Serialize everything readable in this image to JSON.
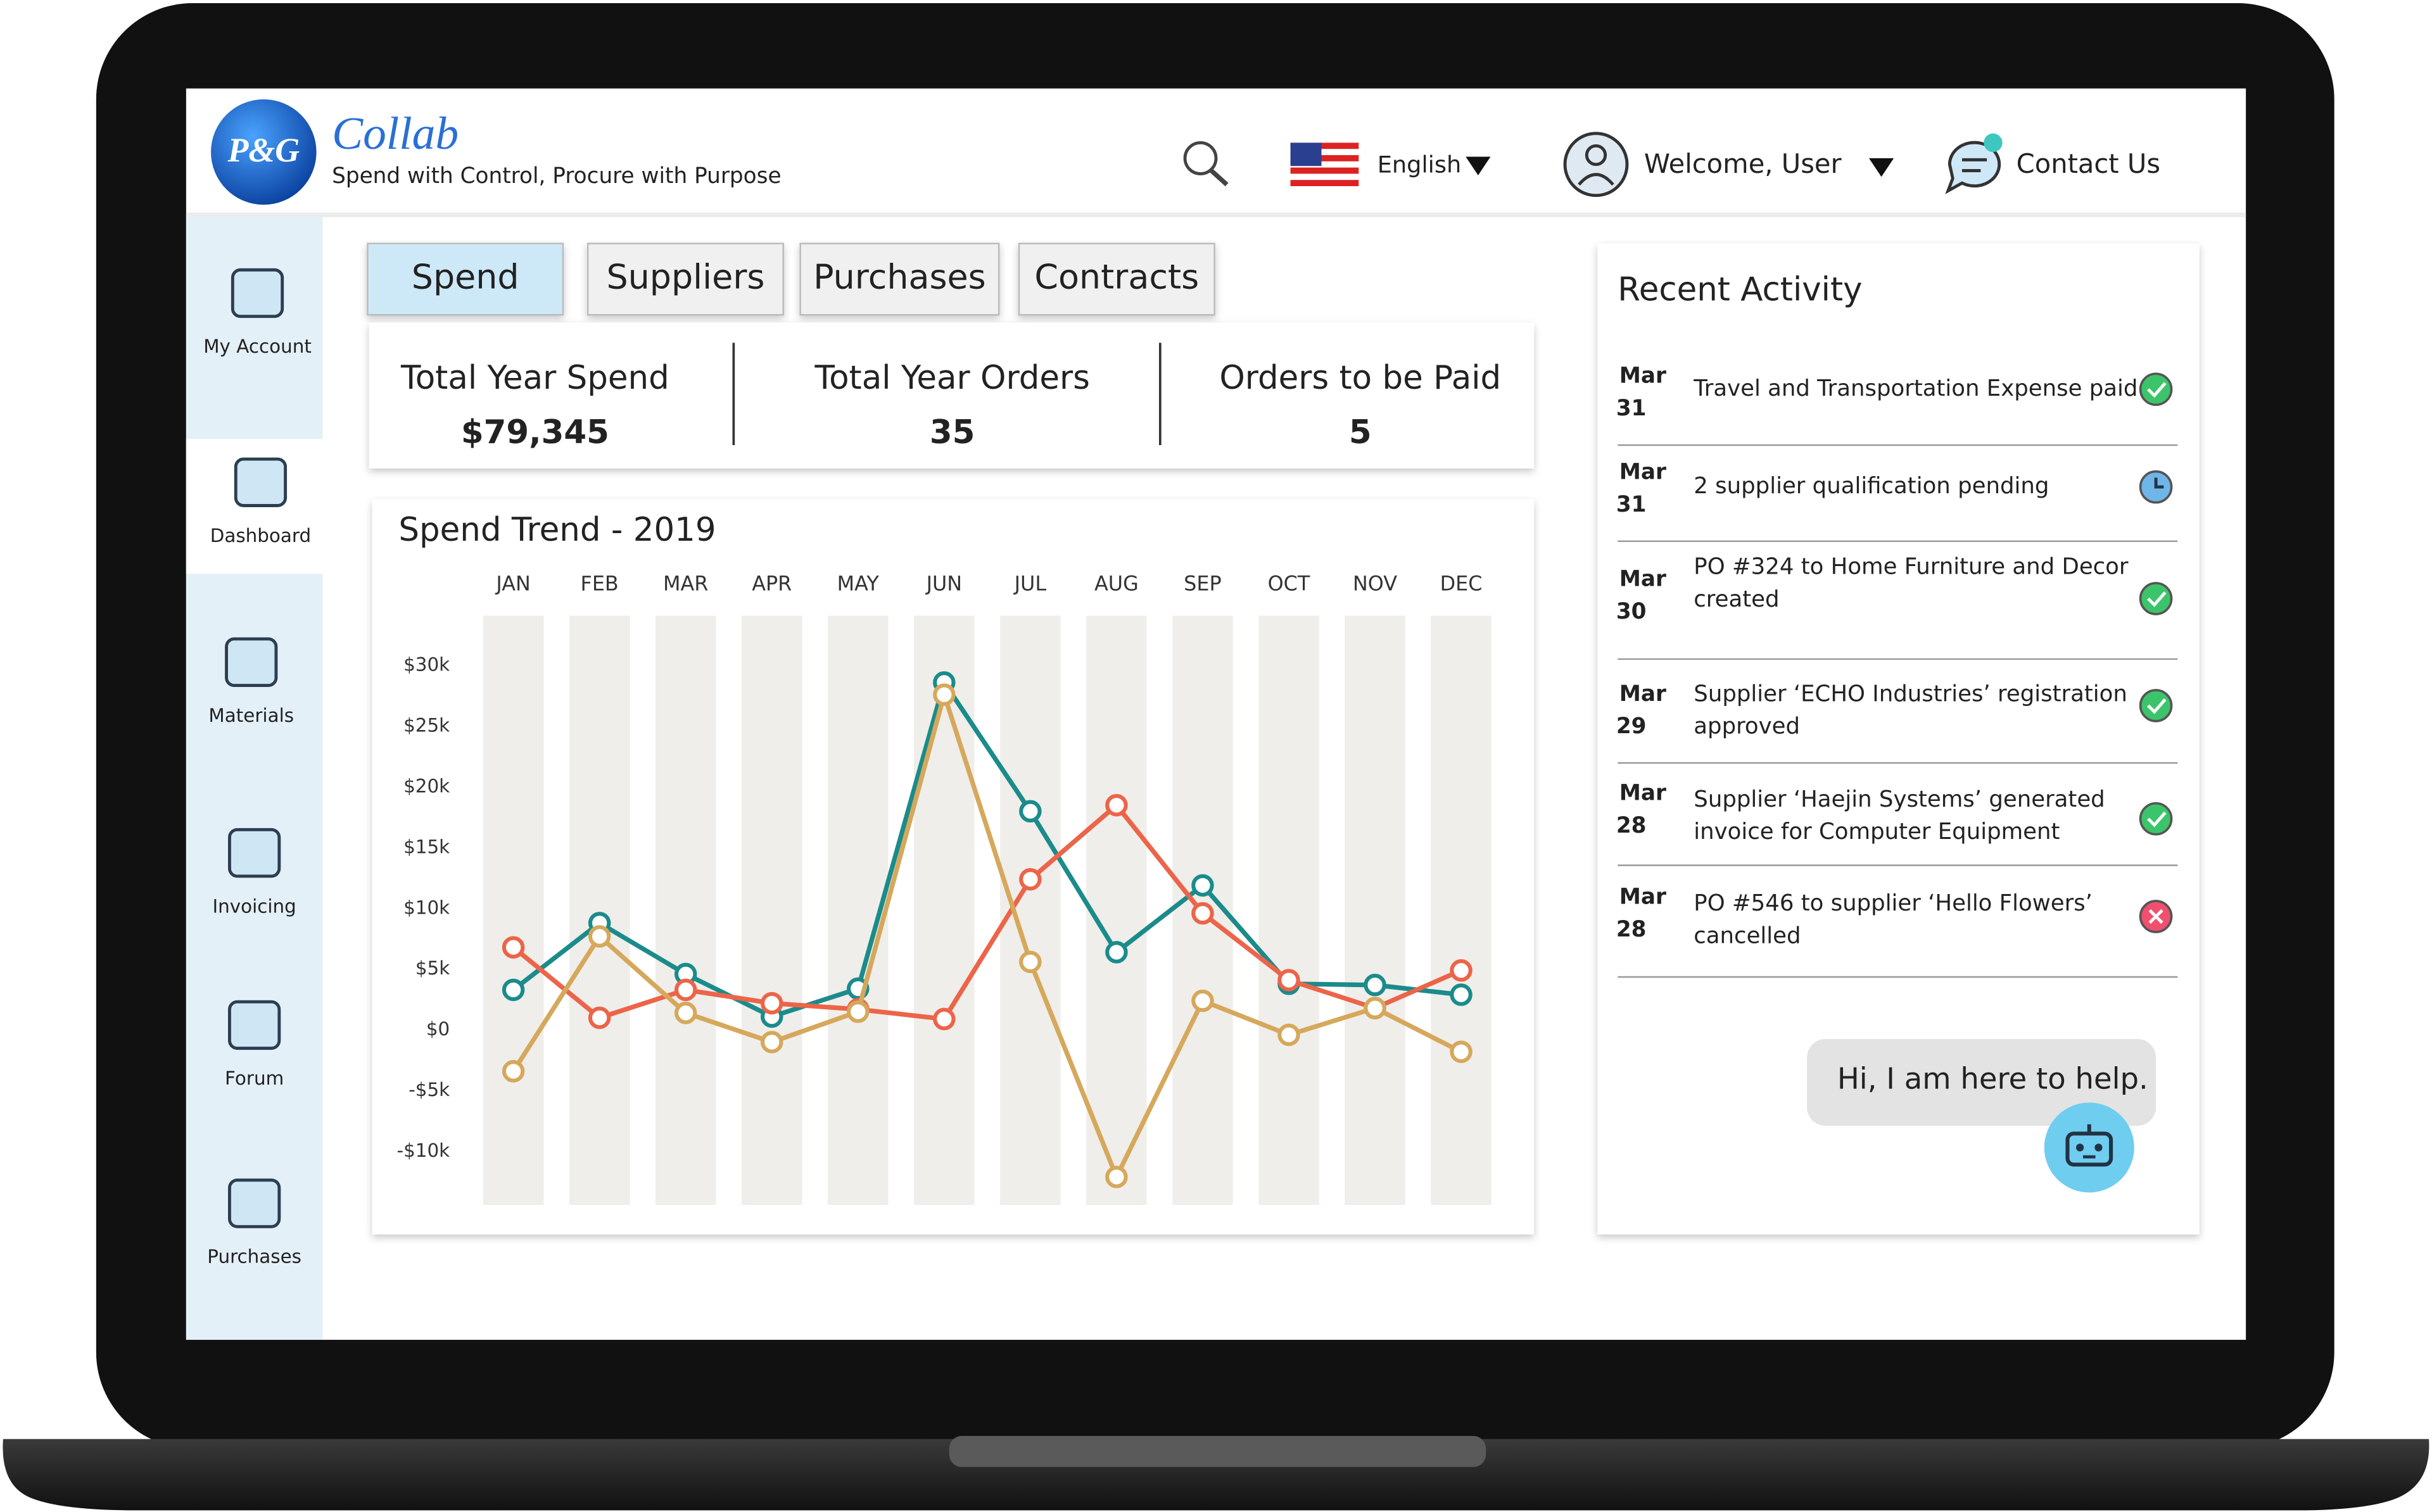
{
  "header": {
    "logo": "P&G",
    "app_name": "Collab",
    "tagline": "Spend with Control, Procure with Purpose",
    "language": "English",
    "welcome": "Welcome, User",
    "contact": "Contact Us"
  },
  "sidebar": {
    "items": [
      "My Account",
      "Dashboard",
      "Materials",
      "Invoicing",
      "Forum",
      "Purchases"
    ]
  },
  "tabs": [
    "Spend",
    "Suppliers",
    "Purchases",
    "Contracts"
  ],
  "kpis": [
    {
      "label": "Total Year Spend",
      "value": "$79,345"
    },
    {
      "label": "Total Year Orders",
      "value": 35
    },
    {
      "label": "Orders to be Paid",
      "value": 5
    }
  ],
  "chart_data": {
    "type": "line",
    "title": "Spend Trend - 2019",
    "categories": [
      "JAN",
      "FEB",
      "MAR",
      "APR",
      "MAY",
      "JUN",
      "JUL",
      "AUG",
      "SEP",
      "OCT",
      "NOV",
      "DEC"
    ],
    "series": [
      {
        "color": "#1b8b8b",
        "values": [
          3300,
          8800,
          4600,
          1100,
          3400,
          28600,
          18000,
          6400,
          11900,
          3800,
          3700,
          2900
        ]
      },
      {
        "color": "#ec6449",
        "values": [
          6800,
          1000,
          3300,
          2200,
          1700,
          900,
          12400,
          18500,
          9600,
          4100,
          1800,
          4900
        ]
      },
      {
        "color": "#d6a85c",
        "values": [
          -3400,
          7700,
          1400,
          -1000,
          1500,
          27600,
          5600,
          -12100,
          2400,
          -400,
          1800,
          -1800
        ]
      }
    ],
    "ylim": [
      -14400,
      34100
    ],
    "yticks": [
      {
        "value": -10000,
        "label": "-$10k"
      },
      {
        "value": -5000,
        "label": "-$5k"
      },
      {
        "value": 0,
        "label": "$0"
      },
      {
        "value": 5000,
        "label": "$5k"
      },
      {
        "value": 10000,
        "label": "$10k"
      },
      {
        "value": 15000,
        "label": "$15k"
      },
      {
        "value": 20000,
        "label": "$20k"
      },
      {
        "value": 25000,
        "label": "$25k"
      },
      {
        "value": 30000,
        "label": "$30k"
      }
    ]
  },
  "recent_activity": {
    "title": "Recent Activity",
    "items": [
      {
        "month": "Mar",
        "day": "31",
        "lines": [
          "Travel and Transportation Expense paid"
        ]
      },
      {
        "month": "Mar",
        "day": "31",
        "lines": [
          "2  supplier qualification pending"
        ]
      },
      {
        "month": "Mar",
        "day": "30",
        "lines": [
          "PO #324  to Home Furniture and Decor",
          "created"
        ]
      },
      {
        "month": "Mar",
        "day": "29",
        "lines": [
          "Supplier ‘ECHO Industries’ registration",
          "approved"
        ]
      },
      {
        "month": "Mar",
        "day": "28",
        "lines": [
          "Supplier ‘Haejin Systems’ generated",
          "invoice for Computer Equipment"
        ]
      },
      {
        "month": "Mar",
        "day": "28",
        "lines": [
          "PO #546 to supplier ‘Hello Flowers’",
          "cancelled"
        ]
      }
    ]
  },
  "chatbot": {
    "message": "Hi, I am here to help."
  }
}
